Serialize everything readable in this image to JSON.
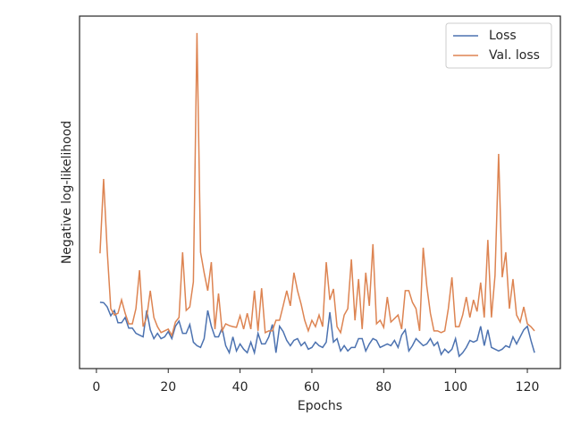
{
  "chart_data": {
    "type": "line",
    "xlabel": "Epochs",
    "ylabel": "Negative log-likelihood",
    "x": [
      1,
      2,
      3,
      4,
      5,
      6,
      7,
      8,
      9,
      10,
      11,
      12,
      13,
      14,
      15,
      16,
      17,
      18,
      19,
      20,
      21,
      22,
      23,
      24,
      25,
      26,
      27,
      28,
      29,
      30,
      31,
      32,
      33,
      34,
      35,
      36,
      37,
      38,
      39,
      40,
      41,
      42,
      43,
      44,
      45,
      46,
      47,
      48,
      49,
      50,
      51,
      52,
      53,
      54,
      55,
      56,
      57,
      58,
      59,
      60,
      61,
      62,
      63,
      64,
      65,
      66,
      67,
      68,
      69,
      70,
      71,
      72,
      73,
      74,
      75,
      76,
      77,
      78,
      79,
      80,
      81,
      82,
      83,
      84,
      85,
      86,
      87,
      88,
      89,
      90,
      91,
      92,
      93,
      94,
      95,
      96,
      97,
      98,
      99,
      100,
      101,
      102,
      103,
      104,
      105,
      106,
      107,
      108,
      109,
      110,
      111,
      112,
      113,
      114,
      115,
      116,
      117,
      118,
      119,
      120,
      121,
      122
    ],
    "series": [
      {
        "name": "Loss",
        "color": "#4c72b0",
        "values": [
          18.8,
          18.7,
          17.5,
          15,
          16.5,
          13,
          13,
          14.5,
          11.5,
          11.5,
          10,
          9.5,
          9,
          16.5,
          11,
          8.5,
          10,
          8.5,
          9,
          10.5,
          8.5,
          12,
          13.5,
          10,
          10,
          12.5,
          7.5,
          6.5,
          6,
          8.5,
          16.5,
          12,
          9,
          9,
          11.5,
          6.5,
          4.5,
          9,
          5,
          7,
          5.5,
          4.5,
          7.5,
          4.5,
          10,
          7,
          7,
          9,
          12.5,
          4.5,
          12,
          10.5,
          8,
          6.5,
          8,
          8.5,
          6.5,
          7.5,
          5.5,
          6,
          7.5,
          6.5,
          6,
          7.5,
          16,
          7.5,
          8.5,
          5,
          6.5,
          5,
          6,
          6,
          8.5,
          8.5,
          5,
          7,
          8.5,
          8,
          6,
          6.5,
          7,
          6.5,
          8,
          6,
          9.5,
          11,
          5,
          6.5,
          8.5,
          7.5,
          6.5,
          7,
          8.5,
          6.5,
          7.5,
          4,
          5.5,
          4.5,
          5.5,
          8.5,
          3.5,
          4.5,
          6,
          8,
          7.5,
          8,
          12,
          6.5,
          11,
          6,
          5.5,
          5,
          5.5,
          6.5,
          6,
          9,
          7,
          9,
          11,
          12,
          8,
          4.5
        ]
      },
      {
        "name": "Val. loss",
        "color": "#dd8452",
        "values": [
          32.7,
          53.8,
          33.5,
          17.0,
          15.2,
          15.7,
          19.5,
          15.7,
          12.7,
          12.7,
          17.0,
          27.9,
          11.9,
          14.5,
          22.1,
          14.5,
          11.9,
          10.2,
          10.7,
          11.2,
          9.4,
          13.2,
          14.5,
          33.0,
          16.5,
          17.5,
          24.6,
          95.2,
          33.0,
          27.2,
          22.1,
          30.2,
          11.2,
          21.3,
          10.7,
          12.7,
          12.2,
          11.9,
          11.7,
          15.0,
          11.2,
          15.7,
          11.2,
          22.1,
          10.7,
          22.8,
          10.2,
          10.7,
          10.7,
          13.7,
          13.7,
          17.8,
          22.1,
          17.8,
          27.2,
          22.1,
          18.3,
          13.7,
          10.7,
          13.7,
          11.9,
          15.2,
          11.9,
          30.2,
          19.5,
          22.6,
          11.9,
          10.2,
          15.2,
          17.0,
          31.0,
          13.7,
          25.4,
          11.2,
          27.2,
          17.8,
          35.3,
          12.7,
          13.7,
          11.7,
          20.3,
          13.2,
          14.2,
          15.2,
          11.2,
          22.1,
          22.1,
          18.8,
          17.0,
          10.7,
          34.3,
          23.4,
          15.7,
          10.7,
          10.7,
          10.2,
          10.7,
          17.0,
          25.9,
          11.9,
          11.9,
          15.2,
          20.3,
          14.5,
          19.5,
          16.2,
          24.4,
          14.5,
          36.5,
          14.5,
          26.4,
          60.9,
          25.9,
          33.0,
          17.0,
          25.4,
          15.2,
          13.2,
          17.5,
          12.7,
          11.9,
          10.7
        ]
      }
    ],
    "xlim": [
      -4.7,
      129.2
    ],
    "xticks": [
      0,
      20,
      40,
      60,
      80,
      100,
      120
    ],
    "ylim": [
      0,
      100
    ],
    "legend": "upper right"
  }
}
